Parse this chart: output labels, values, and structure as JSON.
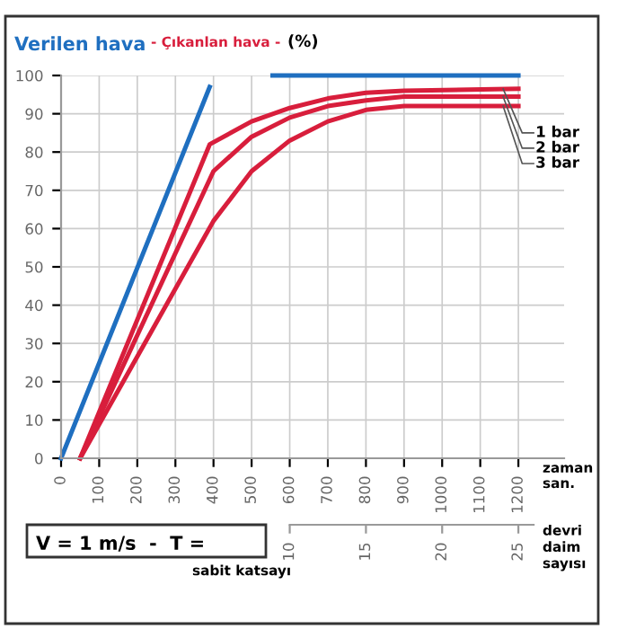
{
  "chart_data": {
    "type": "line",
    "title": "Verilen hava",
    "subtitle": "- Çıkanlan hava -",
    "ylabel": "(%)",
    "xlabel": "zaman san.",
    "x2label": "devri daim sayısı",
    "series": [
      {
        "name": null,
        "color": "#1f6fc0",
        "x": [
          0,
          390,
          470,
          555,
          1200
        ],
        "values": [
          0,
          97,
          null,
          100,
          100
        ]
      },
      {
        "name": "1 bar",
        "color": "#d81e3c",
        "x": [
          50,
          390,
          500,
          600,
          700,
          800,
          900,
          1200
        ],
        "values": [
          0,
          82,
          88,
          91.5,
          94,
          95.5,
          96,
          96.5
        ]
      },
      {
        "name": "2 bar",
        "color": "#d81e3c",
        "x": [
          50,
          400,
          500,
          600,
          700,
          800,
          900,
          1200
        ],
        "values": [
          0,
          75,
          84,
          89,
          92,
          93.5,
          94.5,
          94.5
        ]
      },
      {
        "name": "3 bar",
        "color": "#d81e3c",
        "x": [
          50,
          400,
          500,
          600,
          700,
          800,
          900,
          1200
        ],
        "values": [
          0,
          62,
          75,
          83,
          88,
          91,
          92,
          92
        ]
      }
    ],
    "xlim": [
      0,
      1320
    ],
    "ylim": [
      0,
      100
    ],
    "xticks": [
      0,
      100,
      200,
      300,
      400,
      500,
      600,
      700,
      800,
      900,
      1000,
      1100,
      1200
    ],
    "yticks": [
      0,
      10,
      20,
      30,
      40,
      50,
      60,
      70,
      80,
      90,
      100
    ],
    "x2lim": [
      -5,
      28
    ],
    "x2ticks": [
      10,
      15,
      20,
      25
    ],
    "grid": true,
    "marker": "none",
    "line_style": "solid",
    "annotations": [
      "V = 1 m/s  -  T =",
      "sabit katsayı"
    ]
  }
}
